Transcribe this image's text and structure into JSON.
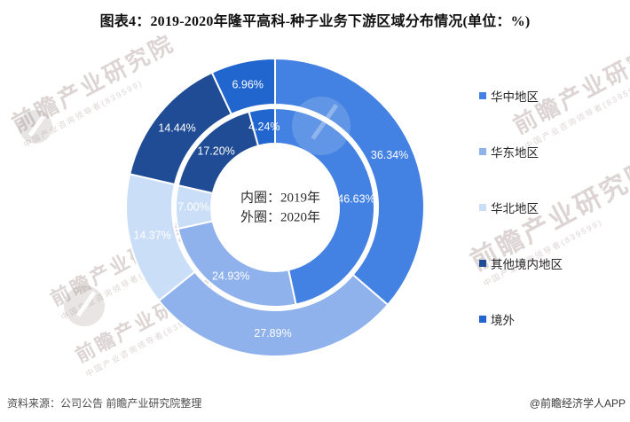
{
  "chart_data": {
    "type": "pie",
    "variant": "double-ring-donut",
    "title": "图表4：2019-2020年隆平高科-种子业务下游区域分布情况(单位：%)",
    "unit": "%",
    "categories": [
      "华中地区",
      "华东地区",
      "华北地区",
      "其他境内地区",
      "境外"
    ],
    "colors": [
      "#4381E2",
      "#8FB2EC",
      "#CBDEF7",
      "#1F4C94",
      "#2066CE"
    ],
    "series": [
      {
        "name": "2019年",
        "ring": "inner",
        "values": [
          46.63,
          24.93,
          7.0,
          17.2,
          4.24
        ]
      },
      {
        "name": "2020年",
        "ring": "outer",
        "values": [
          36.34,
          27.89,
          14.37,
          14.44,
          6.96
        ]
      }
    ],
    "label_suffix": "%",
    "legend_position": "right",
    "start_angle_deg": 0,
    "direction": "clockwise",
    "center_note": [
      "内圈：2019年",
      "外圈：2020年"
    ]
  },
  "footer": {
    "source": "资料来源：公司公告 前瞻产业研究院整理",
    "credit": "@前瞻经济学人APP"
  },
  "watermark": {
    "brand": "前瞻产业研究院",
    "tagline": "中国产业咨询领导者(839599)"
  }
}
